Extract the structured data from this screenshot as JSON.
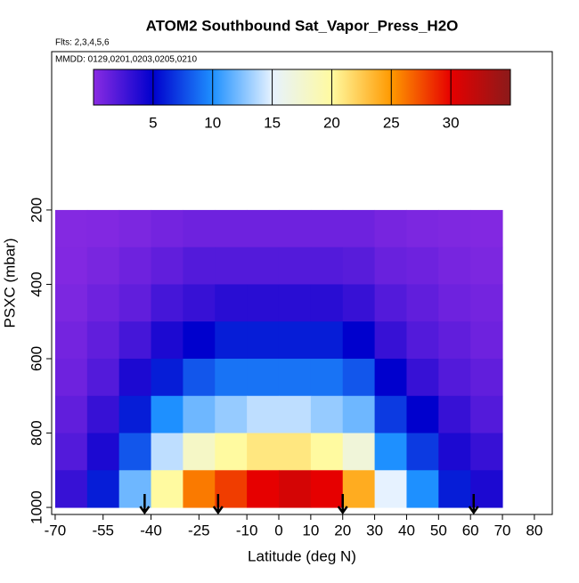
{
  "chart_data": {
    "type": "heatmap",
    "title": "ATOM2 Southbound Sat_Vapor_Press_H2O",
    "subtitle": "Flts: 2,3,4,5,6",
    "annotation": "MMDD: 0129,0201,0203,0205,0210",
    "x_label": "Latitude (deg N)",
    "y_label": "PSXC (mbar)",
    "x_edges": [
      -70,
      -60,
      -50,
      -40,
      -30,
      -20,
      -10,
      0,
      10,
      20,
      30,
      40,
      50,
      60,
      70
    ],
    "y_edges": [
      200,
      300,
      400,
      500,
      600,
      700,
      800,
      900,
      1000
    ],
    "z": [
      [
        0.2,
        0.3,
        0.5,
        0.8,
        1,
        1,
        1,
        1,
        1,
        1,
        0.7,
        0.5,
        0.4,
        0.3
      ],
      [
        0.3,
        0.6,
        1,
        1.5,
        2,
        2,
        2,
        2,
        2,
        1.8,
        1.2,
        1,
        0.7,
        0.5
      ],
      [
        0.5,
        1,
        1.5,
        2.5,
        3,
        3.5,
        3.5,
        3.5,
        3.5,
        3,
        2,
        1.5,
        1,
        0.8
      ],
      [
        0.8,
        1.5,
        2.5,
        4,
        5,
        6,
        6,
        6,
        6,
        5,
        3,
        2,
        1.5,
        1
      ],
      [
        1,
        2,
        4,
        6,
        8,
        9,
        9,
        9,
        9,
        8,
        5,
        3,
        2,
        1.5
      ],
      [
        1.5,
        3,
        6,
        10,
        12,
        13,
        14,
        14,
        13,
        12,
        7,
        5,
        3,
        2
      ],
      [
        2,
        4,
        8,
        14,
        18,
        20,
        21,
        21,
        20,
        17,
        10,
        7,
        4,
        3
      ],
      [
        3,
        6,
        12,
        20,
        26,
        28,
        30,
        31,
        30,
        24,
        15,
        10,
        6,
        4
      ]
    ],
    "colorscale": [
      "#8a2be2",
      "#0000cd",
      "#1e90ff",
      "#e6f2ff",
      "#fffaa0",
      "#ff9900",
      "#e60000",
      "#8b1a1a"
    ],
    "clim": [
      0,
      35
    ],
    "cticks": [
      5,
      10,
      15,
      20,
      25,
      30
    ],
    "arrows": [
      -42,
      -19,
      20,
      61
    ],
    "xlim": [
      -71.1,
      85.6
    ],
    "xticks": [
      -70,
      -55,
      -40,
      -25,
      -10,
      0,
      10,
      20,
      30,
      40,
      50,
      60,
      70,
      80
    ],
    "ylim": [
      1019,
      -226
    ],
    "yticks": [
      200,
      400,
      600,
      800,
      1000
    ]
  }
}
